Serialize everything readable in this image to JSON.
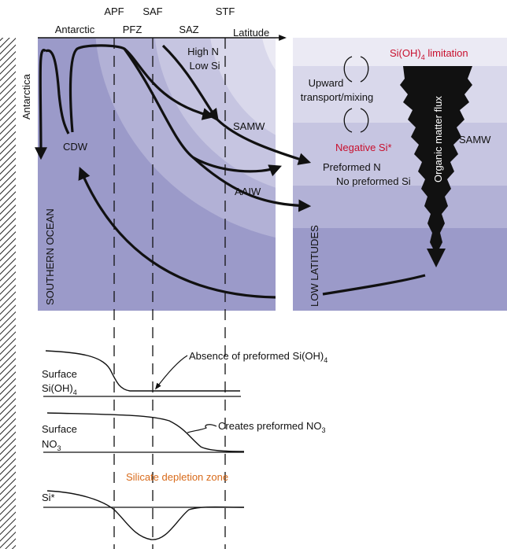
{
  "fronts": {
    "apf": "APF",
    "saf": "SAF",
    "stf": "STF",
    "antarctic": "Antarctic",
    "pfz": "PFZ",
    "saz": "SAZ",
    "latitude": "Latitude"
  },
  "southern_ocean": {
    "antarctica": "Antarctica",
    "high_n": "High N",
    "low_si": "Low Si",
    "samw": "SAMW",
    "cdw": "CDW",
    "aaiw": "AAIW",
    "side_label": "SOUTHERN OCEAN"
  },
  "low_latitudes": {
    "si_limitation": "Si(OH)",
    "si_limitation_sub": "4",
    "si_limitation_tail": " limitation",
    "upward_1": "Upward",
    "upward_2": "transport/mixing",
    "negative_si": "Negative Si*",
    "preformed_n": "Preformed N",
    "no_preformed_si": "No preformed Si",
    "samw": "SAMW",
    "organic_flux": "Organic matter flux",
    "side_label": "LOW LATITUDES"
  },
  "profiles": {
    "surface_si_1": "Surface",
    "surface_si_2": "Si(OH)",
    "surface_si_sub": "4",
    "absence_text": "Absence of preformed Si(OH)",
    "absence_sub": "4",
    "surface_no3_1": "Surface",
    "surface_no3_2": "NO",
    "surface_no3_sub": "3",
    "creates_text": "Creates preformed NO",
    "creates_sub": "3",
    "si_star": "Si*",
    "depletion_zone": "Silicate depletion zone"
  },
  "colors": {
    "deep": "#9b9ac9",
    "band1": "#b2b1d6",
    "band2": "#c6c5e1",
    "band3": "#d9d8eb",
    "band4": "#ebeaf4",
    "accent_red": "#c8102e",
    "accent_orange": "#d86a1a"
  }
}
